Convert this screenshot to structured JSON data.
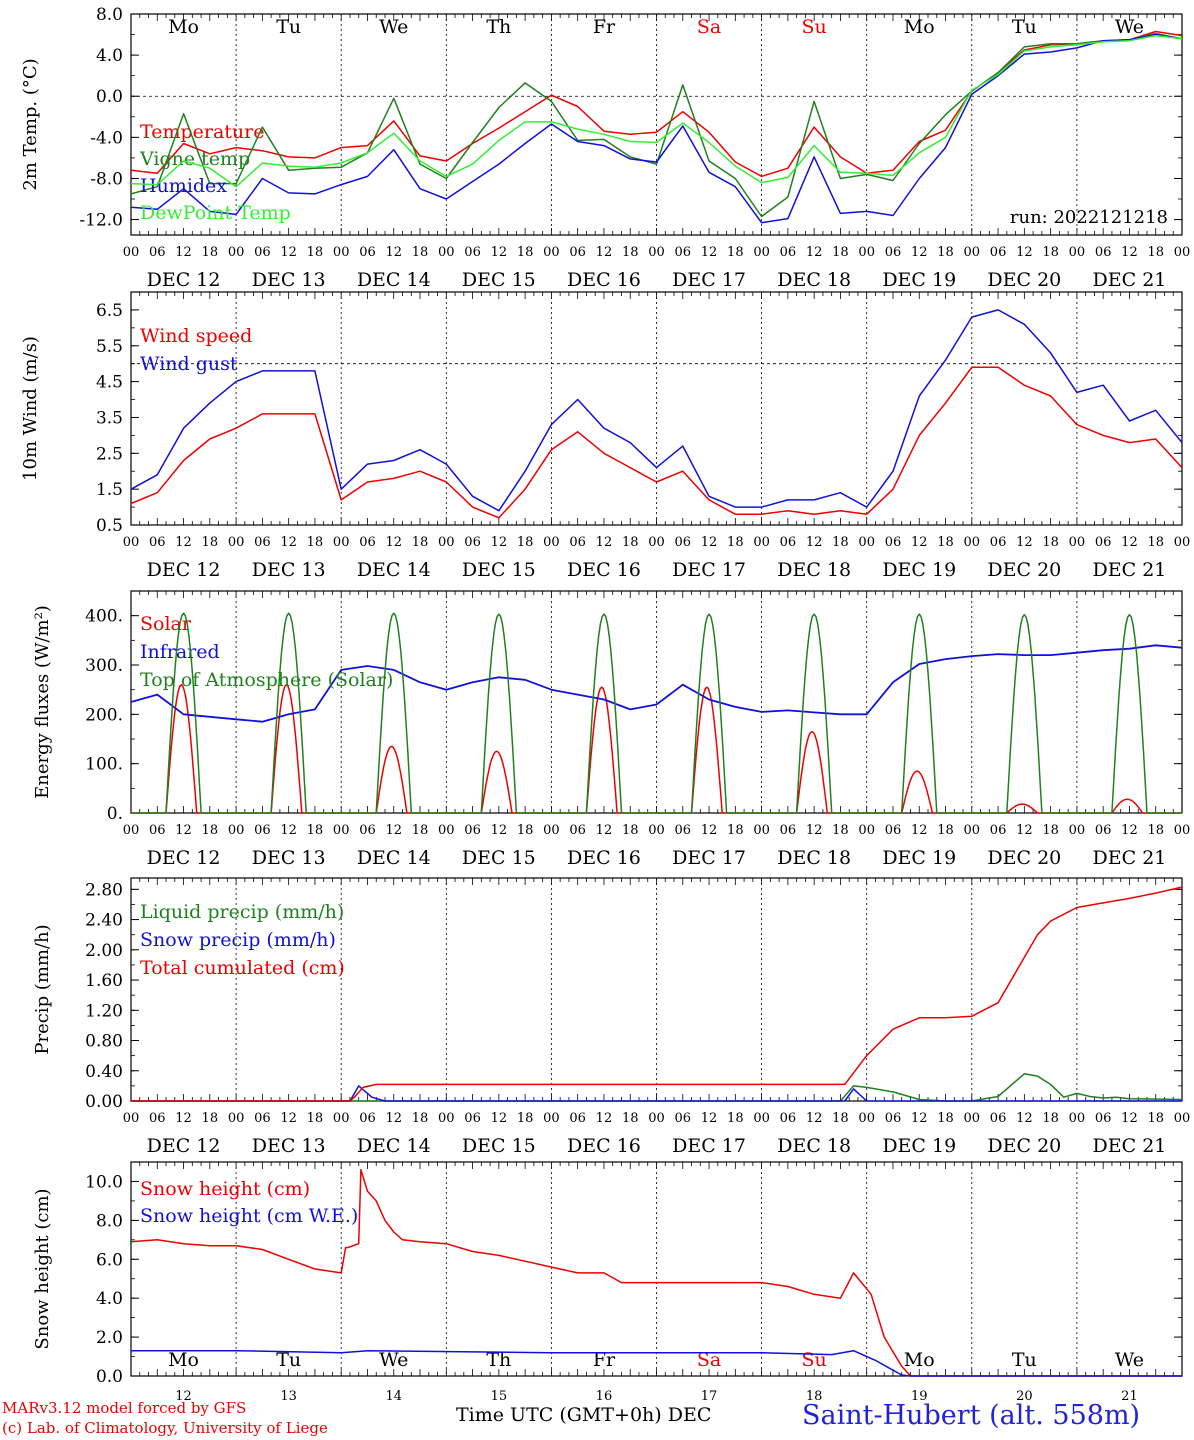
{
  "run_label": "run: 2022121218",
  "footer": {
    "model": "MARv3.12 model forced by GFS",
    "copyright": "(c) Lab. of Climatology, University of Liege",
    "xlabel": "Time UTC (GMT+0h) DEC",
    "station": "Saint-Hubert (alt. 558m)"
  },
  "colors": {
    "red": "#ee0000",
    "green": "#208020",
    "blue": "#1010dd",
    "lightgreen": "#33ee33",
    "purple": "#a000a0"
  },
  "hour_ticks": [
    "00",
    "06",
    "12",
    "18"
  ],
  "end_tick": "00",
  "date_labels": [
    "DEC 12",
    "DEC 13",
    "DEC 14",
    "DEC 15",
    "DEC 16",
    "DEC 17",
    "DEC 18",
    "DEC 19",
    "DEC 20",
    "DEC 21"
  ],
  "day_names": [
    "Mo",
    "Tu",
    "We",
    "Th",
    "Fr",
    "Sa",
    "Su",
    "Mo",
    "Tu",
    "We"
  ],
  "weekend_days": [
    5,
    6
  ],
  "bottom_day_numbers": [
    "12",
    "13",
    "14",
    "15",
    "16",
    "17",
    "18",
    "19",
    "20",
    "21"
  ],
  "chart_data": [
    {
      "type": "line",
      "ylabel": "2m Temp. (°C)",
      "ylim": [
        -13.5,
        8.0
      ],
      "yticks": [
        -12.0,
        -8.0,
        -4.0,
        0.0,
        4.0,
        8.0
      ],
      "tick_decimals": 1,
      "ref_line": 0.0,
      "x_unit": "hours since DEC 12 00 UTC",
      "xlim": [
        0,
        240
      ],
      "series": [
        {
          "name": "Temperature",
          "color": "red",
          "x": [
            0,
            6,
            12,
            18,
            24,
            30,
            36,
            42,
            48,
            54,
            60,
            66,
            72,
            78,
            84,
            90,
            96,
            102,
            108,
            114,
            120,
            126,
            132,
            138,
            144,
            150,
            156,
            162,
            168,
            174,
            180,
            186,
            192,
            198,
            204,
            210,
            216,
            222,
            228,
            234,
            240
          ],
          "y": [
            -7.2,
            -7.5,
            -4.6,
            -5.6,
            -5.0,
            -5.3,
            -5.9,
            -6.0,
            -5.0,
            -4.8,
            -2.4,
            -5.8,
            -6.3,
            -4.6,
            -3.1,
            -1.5,
            0.1,
            -1.0,
            -3.4,
            -3.7,
            -3.5,
            -1.5,
            -3.5,
            -6.4,
            -7.8,
            -7.0,
            -3.0,
            -5.9,
            -7.5,
            -7.2,
            -4.4,
            -3.3,
            0.5,
            2.3,
            4.5,
            5.0,
            5.1,
            5.4,
            5.5,
            6.3,
            5.9
          ]
        },
        {
          "name": "Vigne temp",
          "color": "green",
          "x": [
            0,
            6,
            12,
            18,
            24,
            30,
            36,
            42,
            48,
            54,
            60,
            66,
            72,
            78,
            84,
            90,
            96,
            102,
            108,
            114,
            120,
            126,
            132,
            138,
            144,
            150,
            156,
            162,
            168,
            174,
            180,
            186,
            192,
            198,
            204,
            210,
            216,
            222,
            228,
            234,
            240
          ],
          "y": [
            -9.5,
            -8.8,
            -1.7,
            -8.5,
            -8.5,
            -3.0,
            -7.2,
            -7.0,
            -6.9,
            -5.5,
            -0.2,
            -6.6,
            -8.0,
            -4.5,
            -1.1,
            1.3,
            -0.5,
            -4.3,
            -4.2,
            -5.9,
            -6.6,
            1.1,
            -6.3,
            -8.0,
            -11.7,
            -9.8,
            -0.5,
            -8.0,
            -7.6,
            -8.2,
            -4.6,
            -1.8,
            0.5,
            2.3,
            4.8,
            5.1,
            5.1,
            5.3,
            5.5,
            6.1,
            5.6
          ]
        },
        {
          "name": "Humidex",
          "color": "blue",
          "x": [
            0,
            6,
            12,
            18,
            24,
            30,
            36,
            42,
            48,
            54,
            60,
            66,
            72,
            78,
            84,
            90,
            96,
            102,
            108,
            114,
            120,
            126,
            132,
            138,
            144,
            150,
            156,
            162,
            168,
            174,
            180,
            186,
            192,
            198,
            204,
            210,
            216,
            222,
            228,
            234,
            240
          ],
          "y": [
            -10.8,
            -11.0,
            -9.0,
            -11.2,
            -11.5,
            -8.0,
            -9.4,
            -9.5,
            -8.6,
            -7.8,
            -5.2,
            -9.0,
            -10.0,
            -8.3,
            -6.6,
            -4.6,
            -2.7,
            -4.4,
            -4.8,
            -6.1,
            -6.4,
            -2.9,
            -7.4,
            -8.8,
            -12.3,
            -11.9,
            -5.9,
            -11.4,
            -11.2,
            -11.6,
            -8.0,
            -5.0,
            0.2,
            2.0,
            4.1,
            4.3,
            4.7,
            5.4,
            5.5,
            6.0,
            5.6
          ]
        },
        {
          "name": "DewPoint Temp",
          "color": "lightgreen",
          "x": [
            0,
            6,
            12,
            18,
            24,
            30,
            36,
            42,
            48,
            54,
            60,
            66,
            72,
            78,
            84,
            90,
            96,
            102,
            108,
            114,
            120,
            126,
            132,
            138,
            144,
            150,
            156,
            162,
            168,
            174,
            180,
            186,
            192,
            198,
            204,
            210,
            216,
            222,
            228,
            234,
            240
          ],
          "y": [
            -8.5,
            -8.6,
            -6.3,
            -7.0,
            -8.8,
            -6.5,
            -6.8,
            -6.9,
            -6.5,
            -5.5,
            -3.6,
            -6.3,
            -7.8,
            -6.6,
            -4.3,
            -2.5,
            -2.5,
            -3.2,
            -3.7,
            -4.4,
            -4.5,
            -2.6,
            -4.5,
            -6.8,
            -8.4,
            -7.9,
            -4.8,
            -7.4,
            -7.5,
            -7.7,
            -5.5,
            -4.0,
            0.6,
            2.1,
            4.4,
            4.8,
            5.0,
            5.3,
            5.4,
            5.9,
            5.6
          ]
        }
      ]
    },
    {
      "type": "line",
      "ylabel": "10m Wind (m/s)",
      "ylim": [
        0.5,
        7.0
      ],
      "yticks": [
        0.5,
        1.5,
        2.5,
        3.5,
        4.5,
        5.5,
        6.5
      ],
      "tick_decimals": 1,
      "ref_line": 5.0,
      "x_unit": "hours since DEC 12 00 UTC",
      "xlim": [
        0,
        240
      ],
      "series": [
        {
          "name": "Wind speed",
          "color": "red",
          "x": [
            0,
            6,
            12,
            18,
            24,
            30,
            36,
            42,
            48,
            54,
            60,
            66,
            72,
            78,
            84,
            90,
            96,
            102,
            108,
            114,
            120,
            126,
            132,
            138,
            144,
            150,
            156,
            162,
            168,
            174,
            180,
            186,
            192,
            198,
            204,
            210,
            216,
            222,
            228,
            234,
            240
          ],
          "y": [
            1.1,
            1.4,
            2.3,
            2.9,
            3.2,
            3.6,
            3.6,
            3.6,
            1.2,
            1.7,
            1.8,
            2.0,
            1.7,
            1.0,
            0.7,
            1.5,
            2.6,
            3.1,
            2.5,
            2.1,
            1.7,
            2.0,
            1.2,
            0.8,
            0.8,
            0.9,
            0.8,
            0.9,
            0.8,
            1.5,
            3.0,
            3.9,
            4.9,
            4.9,
            4.4,
            4.1,
            3.3,
            3.0,
            2.8,
            2.9,
            2.1
          ]
        },
        {
          "name": "Wind gust",
          "color": "blue",
          "x": [
            0,
            6,
            12,
            18,
            24,
            30,
            36,
            42,
            48,
            54,
            60,
            66,
            72,
            78,
            84,
            90,
            96,
            102,
            108,
            114,
            120,
            126,
            132,
            138,
            144,
            150,
            156,
            162,
            168,
            174,
            180,
            186,
            192,
            198,
            204,
            210,
            216,
            222,
            228,
            234,
            240
          ],
          "y": [
            1.5,
            1.9,
            3.2,
            3.9,
            4.5,
            4.8,
            4.8,
            4.8,
            1.5,
            2.2,
            2.3,
            2.6,
            2.2,
            1.3,
            0.9,
            2.0,
            3.3,
            4.0,
            3.2,
            2.8,
            2.1,
            2.7,
            1.3,
            1.0,
            1.0,
            1.2,
            1.2,
            1.4,
            1.0,
            2.0,
            4.1,
            5.1,
            6.3,
            6.5,
            6.1,
            5.3,
            4.2,
            4.4,
            3.4,
            3.7,
            2.8
          ]
        }
      ]
    },
    {
      "type": "line",
      "ylabel": "Energy fluxes (W/m²)",
      "ylim": [
        0,
        450
      ],
      "yticks": [
        0,
        100,
        200,
        300,
        400
      ],
      "tick_decimals": 0,
      "tick_suffix": ".",
      "x_unit": "hours since DEC 12 00 UTC",
      "xlim": [
        0,
        240
      ],
      "series": [
        {
          "name": "Solar",
          "color": "red",
          "shape": "daily_bell",
          "half_width_h": 3.5,
          "peak_hour": 11.5,
          "daily_peaks": [
            260,
            260,
            135,
            125,
            255,
            255,
            165,
            85,
            18,
            28
          ]
        },
        {
          "name": "Infrared",
          "color": "blue",
          "x": [
            0,
            6,
            12,
            18,
            24,
            30,
            36,
            42,
            48,
            54,
            60,
            66,
            72,
            78,
            84,
            90,
            96,
            102,
            108,
            114,
            120,
            126,
            132,
            138,
            144,
            150,
            156,
            162,
            168,
            174,
            180,
            186,
            192,
            198,
            204,
            210,
            216,
            222,
            228,
            234,
            240
          ],
          "y": [
            225,
            240,
            200,
            195,
            190,
            185,
            200,
            210,
            290,
            298,
            290,
            265,
            250,
            265,
            275,
            270,
            250,
            240,
            230,
            210,
            220,
            260,
            230,
            215,
            205,
            208,
            204,
            200,
            200,
            265,
            302,
            312,
            318,
            322,
            320,
            320,
            325,
            330,
            333,
            340,
            335
          ]
        },
        {
          "name": "Top of Atmosphere (Solar)",
          "color": "green",
          "shape": "daily_bell",
          "half_width_h": 4.0,
          "peak_hour": 12.0,
          "daily_peaks": [
            405,
            405,
            405,
            403,
            403,
            403,
            403,
            403,
            402,
            402
          ]
        }
      ]
    },
    {
      "type": "line",
      "ylabel": "Precip (mm/h)",
      "ylim": [
        0,
        2.95
      ],
      "yticks": [
        0.0,
        0.4,
        0.8,
        1.2,
        1.6,
        2.0,
        2.4,
        2.8
      ],
      "tick_decimals": 2,
      "x_unit": "hours since DEC 12 00 UTC",
      "xlim": [
        0,
        240
      ],
      "series": [
        {
          "name": "Liquid precip (mm/h)",
          "color": "green",
          "x": [
            0,
            162,
            165,
            168,
            174,
            180,
            186,
            192,
            198,
            204,
            207,
            210,
            213,
            216,
            219,
            222,
            225,
            228,
            240
          ],
          "y": [
            0,
            0,
            0.2,
            0.18,
            0.12,
            0.02,
            0,
            0,
            0.06,
            0.36,
            0.33,
            0.22,
            0.05,
            0.1,
            0.06,
            0.04,
            0.05,
            0.03,
            0.02
          ]
        },
        {
          "name": "Snow precip (mm/h)",
          "color": "blue",
          "x": [
            0,
            50,
            52,
            55,
            58,
            163,
            165,
            168,
            240
          ],
          "y": [
            0,
            0,
            0.2,
            0.05,
            0,
            0,
            0.16,
            0,
            0
          ]
        },
        {
          "name": "Total cumulated (cm)",
          "color": "red",
          "x": [
            0,
            50,
            51,
            53,
            56,
            163,
            168,
            174,
            180,
            186,
            192,
            198,
            204,
            207,
            210,
            216,
            222,
            228,
            234,
            240
          ],
          "y": [
            0,
            0,
            0.05,
            0.18,
            0.22,
            0.22,
            0.6,
            0.95,
            1.1,
            1.1,
            1.12,
            1.3,
            1.9,
            2.2,
            2.38,
            2.56,
            2.62,
            2.68,
            2.75,
            2.83
          ]
        }
      ]
    },
    {
      "type": "line",
      "ylabel": "Snow height (cm)",
      "ylim": [
        0,
        11
      ],
      "yticks": [
        0.0,
        2.0,
        4.0,
        6.0,
        8.0,
        10.0
      ],
      "tick_decimals": 1,
      "x_unit": "hours since DEC 12 00 UTC",
      "xlim": [
        0,
        240
      ],
      "series": [
        {
          "name": "Snow height (cm)",
          "color": "red",
          "x": [
            0,
            6,
            12,
            18,
            24,
            30,
            36,
            42,
            48,
            49,
            49.5,
            52,
            52.5,
            54,
            56,
            58,
            60,
            62,
            66,
            72,
            78,
            84,
            90,
            96,
            102,
            108,
            112,
            120,
            132,
            144,
            150,
            156,
            162,
            165,
            169,
            172,
            176,
            178,
            240
          ],
          "y": [
            6.9,
            7.0,
            6.8,
            6.7,
            6.7,
            6.5,
            6.0,
            5.5,
            5.3,
            6.6,
            6.6,
            6.8,
            10.6,
            9.5,
            9.0,
            8.0,
            7.4,
            7.0,
            6.9,
            6.8,
            6.4,
            6.2,
            5.9,
            5.6,
            5.3,
            5.3,
            4.8,
            4.8,
            4.8,
            4.8,
            4.6,
            4.2,
            4.0,
            5.3,
            4.2,
            2.0,
            0.5,
            0,
            0
          ]
        },
        {
          "name": "Snow height (cm W.E.)",
          "color": "blue",
          "x": [
            0,
            24,
            48,
            54,
            96,
            144,
            160,
            165,
            170,
            176,
            178,
            240
          ],
          "y": [
            1.3,
            1.3,
            1.2,
            1.3,
            1.2,
            1.2,
            1.1,
            1.3,
            0.8,
            0.05,
            0,
            0
          ]
        }
      ]
    }
  ]
}
